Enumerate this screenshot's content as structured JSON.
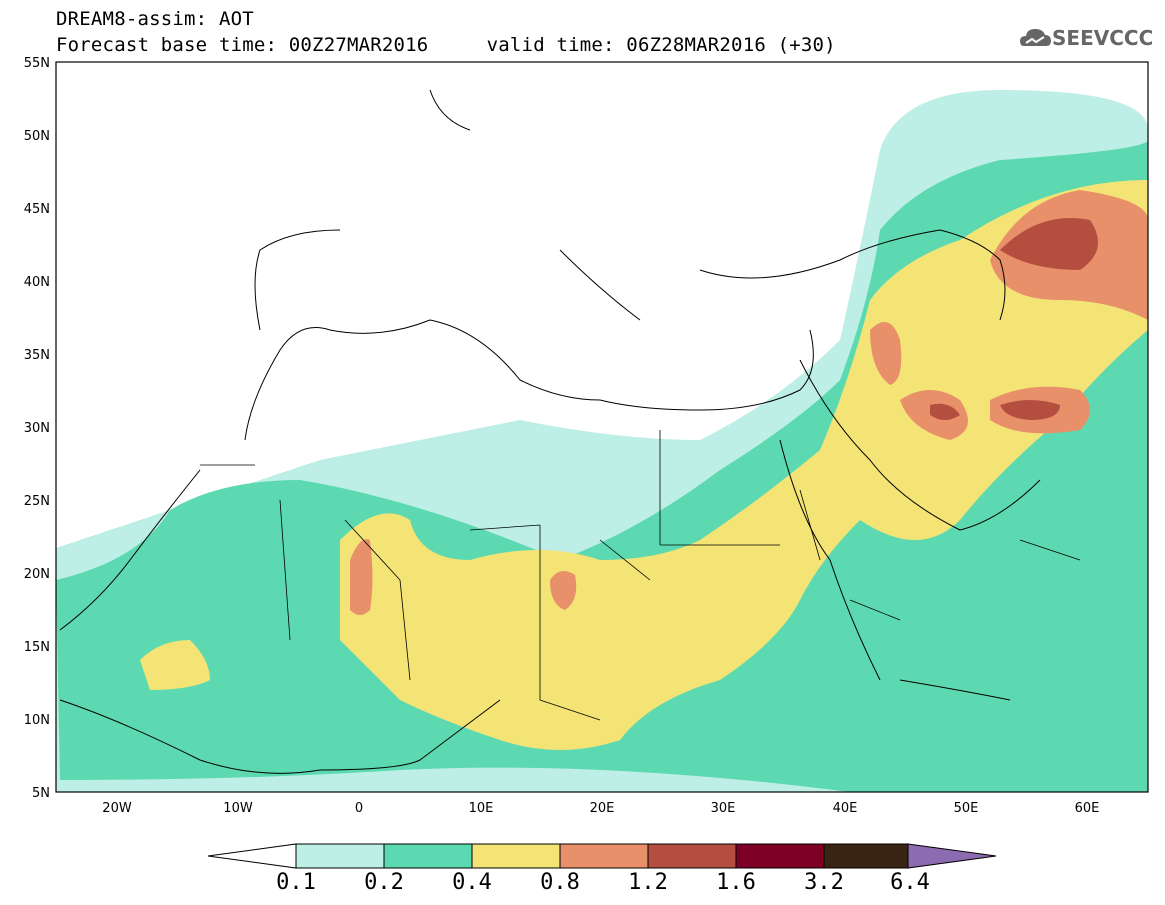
{
  "header": {
    "line1": "DREAM8-assim: AOT",
    "line2": "Forecast base time: 00Z27MAR2016     valid time: 06Z28MAR2016 (+30)"
  },
  "logo": {
    "text": "SEEVCCC",
    "icon": "cloud-icon"
  },
  "map": {
    "lat_ticks": [
      "55N",
      "50N",
      "45N",
      "40N",
      "35N",
      "30N",
      "25N",
      "20N",
      "15N",
      "10N",
      "5N"
    ],
    "lon_ticks": [
      "20W",
      "10W",
      "0",
      "10E",
      "20E",
      "30E",
      "40E",
      "50E",
      "60E"
    ],
    "extent": {
      "lon": [
        -25,
        65
      ],
      "lat": [
        5,
        55
      ]
    },
    "field": "AOT"
  },
  "colorbar": {
    "labels": [
      "0.1",
      "0.2",
      "0.4",
      "0.8",
      "1.2",
      "1.6",
      "3.2",
      "6.4"
    ],
    "colors": [
      "#ffffff",
      "#bdefe6",
      "#5cd9b0",
      "#f4e476",
      "#e8906a",
      "#b44f3f",
      "#7e0026",
      "#3a2414",
      "#8c6bb1"
    ]
  }
}
